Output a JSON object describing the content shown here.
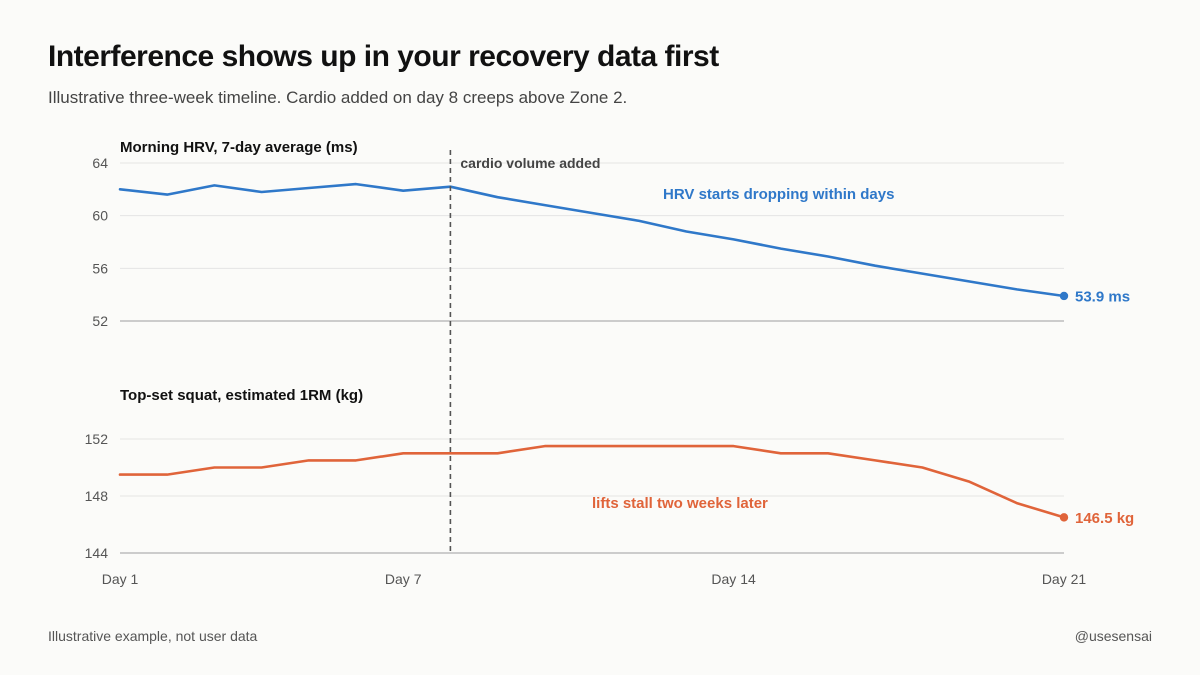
{
  "header": {
    "title": "Interference shows up in your recovery data first",
    "subtitle": "Illustrative three-week timeline. Cardio added on day 8 creeps above Zone 2."
  },
  "footer": {
    "note": "Illustrative example, not user data",
    "handle": "@usesensai"
  },
  "colors": {
    "hrv": "#2f78c9",
    "squat": "#e0643a",
    "grid": "#e4e4e4",
    "baseline": "#bdbdbd",
    "marker": "#555555",
    "tick_text": "#555555"
  },
  "chart_data": [
    {
      "type": "line",
      "title": "Morning HRV, 7-day average (ms)",
      "x": [
        1,
        2,
        3,
        4,
        5,
        6,
        7,
        8,
        9,
        10,
        11,
        12,
        13,
        14,
        15,
        16,
        17,
        18,
        19,
        20,
        21
      ],
      "series": [
        {
          "values": [
            62.0,
            61.6,
            62.3,
            61.8,
            62.1,
            62.4,
            61.9,
            62.2,
            61.4,
            60.8,
            60.2,
            59.6,
            58.8,
            58.2,
            57.5,
            56.9,
            56.2,
            55.6,
            55.0,
            54.4,
            53.9
          ],
          "color": "#2f78c9"
        }
      ],
      "ylim": [
        52,
        64
      ],
      "yticks": [
        64,
        60,
        56,
        52
      ],
      "end_label": "53.9 ms",
      "annotation": "HRV starts dropping within days"
    },
    {
      "type": "line",
      "title": "Top-set squat, estimated 1RM (kg)",
      "x": [
        1,
        2,
        3,
        4,
        5,
        6,
        7,
        8,
        9,
        10,
        11,
        12,
        13,
        14,
        15,
        16,
        17,
        18,
        19,
        20,
        21
      ],
      "series": [
        {
          "values": [
            149.5,
            149.5,
            150.0,
            150.0,
            150.5,
            150.5,
            151.0,
            151.0,
            151.0,
            151.5,
            151.5,
            151.5,
            151.5,
            151.5,
            151.0,
            151.0,
            150.5,
            150.0,
            149.0,
            147.5,
            146.5
          ],
          "color": "#e0643a"
        }
      ],
      "ylim": [
        144,
        152
      ],
      "yticks": [
        152,
        148,
        144
      ],
      "end_label": "146.5 kg",
      "annotation": "lifts stall two weeks later"
    }
  ],
  "x_axis": {
    "range": [
      1,
      21
    ],
    "ticks": [
      {
        "day": 1,
        "label": "Day 1"
      },
      {
        "day": 7,
        "label": "Day 7"
      },
      {
        "day": 14,
        "label": "Day 14"
      },
      {
        "day": 21,
        "label": "Day 21"
      }
    ]
  },
  "event_marker": {
    "day": 8,
    "label": "cardio volume added"
  }
}
